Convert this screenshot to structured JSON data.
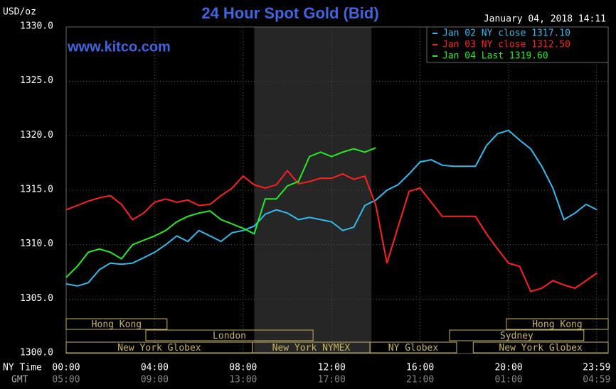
{
  "chart_data": {
    "type": "line",
    "title": "24 Hour Spot Gold (Bid)",
    "y_label": "USD/oz",
    "timestamp": "January 04, 2018 14:11",
    "watermark": "www.kitco.com",
    "x_label": "NY Time",
    "x2_label": "GMT",
    "xlim": [
      0,
      24.5
    ],
    "ylim": [
      1300,
      1330
    ],
    "xticks": [
      {
        "value": 0,
        "label": "00:00"
      },
      {
        "value": 4,
        "label": "04:00"
      },
      {
        "value": 8,
        "label": "08:00"
      },
      {
        "value": 12,
        "label": "12:00"
      },
      {
        "value": 16,
        "label": "16:00"
      },
      {
        "value": 20,
        "label": "20:00"
      },
      {
        "value": 23.98,
        "label": "23:59"
      }
    ],
    "x2ticks": [
      {
        "value": 0,
        "label": "05:00"
      },
      {
        "value": 4,
        "label": "09:00"
      },
      {
        "value": 8,
        "label": "13:00"
      },
      {
        "value": 12,
        "label": "17:00"
      },
      {
        "value": 16,
        "label": "21:00"
      },
      {
        "value": 20,
        "label": "01:00"
      },
      {
        "value": 23.98,
        "label": "04:59"
      }
    ],
    "yticks": [
      {
        "value": 1300,
        "label": "1300.0"
      },
      {
        "value": 1305,
        "label": "1305.0"
      },
      {
        "value": 1310,
        "label": "1310.0"
      },
      {
        "value": 1315,
        "label": "1315.0"
      },
      {
        "value": 1320,
        "label": "1320.0"
      },
      {
        "value": 1325,
        "label": "1325.0"
      },
      {
        "value": 1330,
        "label": "1330.0"
      }
    ],
    "grid": true,
    "legend": "top-right",
    "shaded_xrange": [
      8.5,
      13.8
    ],
    "sessions": [
      [
        {
          "label": "Hong Kong",
          "start": 0,
          "end": 4.56
        },
        {
          "label": "Hong Kong",
          "start": 19.9,
          "end": 24.5
        }
      ],
      [
        {
          "label": "London",
          "start": 3.6,
          "end": 11.16
        },
        {
          "label": "Sydney",
          "start": 17.33,
          "end": 23.4
        }
      ],
      [
        {
          "label": "New York Globex",
          "start": 0,
          "end": 8.42
        },
        {
          "label": "New York NYMEX",
          "start": 8.42,
          "end": 13.73
        },
        {
          "label": "NY Globex",
          "start": 13.73,
          "end": 17.65
        },
        {
          "label": "New York Globex",
          "start": 18.4,
          "end": 24.5
        }
      ]
    ],
    "x": [
      0,
      0.5,
      1,
      1.5,
      2,
      2.5,
      3,
      3.5,
      4,
      4.5,
      5,
      5.5,
      6,
      6.5,
      7,
      7.5,
      8,
      8.5,
      9,
      9.5,
      10,
      10.5,
      11,
      11.5,
      12,
      12.5,
      13,
      13.5,
      14,
      14.5,
      15,
      15.5,
      16,
      16.5,
      17,
      17.5,
      18,
      18.5,
      19,
      19.5,
      20,
      20.5,
      21,
      21.5,
      22,
      22.5,
      23,
      23.5,
      24
    ],
    "series": [
      {
        "name": "Jan 02 NY close 1317.10",
        "color": "#33bbee",
        "values": [
          1306.4,
          1306.2,
          1306.5,
          1307.7,
          1308.3,
          1308.2,
          1308.3,
          1308.8,
          1309.3,
          1310.0,
          1310.8,
          1310.3,
          1311.3,
          1310.8,
          1310.3,
          1311.1,
          1311.3,
          1311.7,
          1312.8,
          1313.2,
          1312.9,
          1312.3,
          1312.5,
          1312.3,
          1312.1,
          1311.3,
          1311.6,
          1313.6,
          1314.1,
          1315.0,
          1315.5,
          1316.5,
          1317.6,
          1317.8,
          1317.3,
          1317.2,
          1317.2,
          1317.2,
          1319.1,
          1320.2,
          1320.5,
          1319.6,
          1318.8,
          1317.2,
          1315.2,
          1312.3,
          1312.9,
          1313.7,
          1313.2
        ]
      },
      {
        "name": "Jan 03 NY close 1312.50",
        "color": "#ff2020",
        "values": [
          1313.2,
          1313.6,
          1314.0,
          1314.3,
          1314.5,
          1313.7,
          1312.3,
          1312.9,
          1313.9,
          1314.2,
          1313.9,
          1314.1,
          1313.6,
          1313.7,
          1314.5,
          1315.2,
          1316.3,
          1315.5,
          1315.2,
          1315.5,
          1316.8,
          1315.6,
          1315.8,
          1316.1,
          1316.1,
          1316.5,
          1316.0,
          1316.3,
          1313.6,
          1308.3,
          1311.6,
          1314.9,
          1315.2,
          1313.9,
          1312.6,
          1312.6,
          1312.6,
          1312.6,
          1311.0,
          1309.6,
          1308.3,
          1308.0,
          1305.7,
          1306.0,
          1306.7,
          1306.3,
          1306.0,
          1306.7,
          1307.4
        ]
      },
      {
        "name": "Jan 04 Last 1319.60",
        "color": "#22ee22",
        "values": [
          1307.0,
          1308.0,
          1309.3,
          1309.6,
          1309.3,
          1308.7,
          1310.0,
          1310.4,
          1310.8,
          1311.3,
          1312.1,
          1312.6,
          1312.9,
          1313.1,
          1312.3,
          1311.9,
          1311.5,
          1311.0,
          1314.2,
          1314.2,
          1315.4,
          1315.8,
          1318.1,
          1318.5,
          1318.1,
          1318.5,
          1318.8,
          1318.5,
          1318.9,
          null,
          null,
          null,
          null,
          null,
          null,
          null,
          null,
          null,
          null,
          null,
          null,
          null,
          null,
          null,
          null,
          null,
          null,
          null,
          null
        ]
      }
    ]
  }
}
